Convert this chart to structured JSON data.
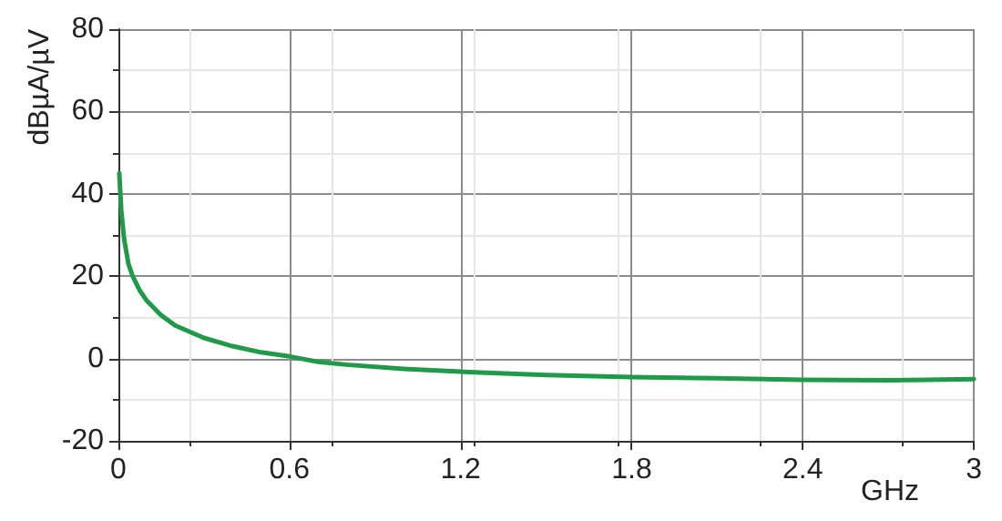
{
  "chart_data": {
    "type": "line",
    "xlabel": "GHz",
    "ylabel": "dBµA/µV",
    "xlim": [
      0,
      3
    ],
    "ylim": [
      -20,
      80
    ],
    "xticks": [
      0,
      0.6,
      1.2,
      1.8,
      2.4,
      3
    ],
    "yticks": [
      -20,
      0,
      20,
      40,
      60,
      80
    ],
    "grid": true,
    "series": [
      {
        "color": "#1f9a48",
        "x": [
          0.003,
          0.01,
          0.02,
          0.035,
          0.05,
          0.075,
          0.1,
          0.15,
          0.2,
          0.3,
          0.4,
          0.5,
          0.6,
          0.7,
          0.8,
          1.0,
          1.2,
          1.5,
          1.8,
          2.1,
          2.4,
          2.7,
          3.0
        ],
        "values": [
          45,
          36,
          29,
          23,
          20,
          16.5,
          14,
          10.5,
          8,
          5,
          3,
          1.5,
          0.5,
          -0.8,
          -1.5,
          -2.5,
          -3.2,
          -4,
          -4.5,
          -4.8,
          -5.2,
          -5.3,
          -5
        ]
      }
    ]
  }
}
